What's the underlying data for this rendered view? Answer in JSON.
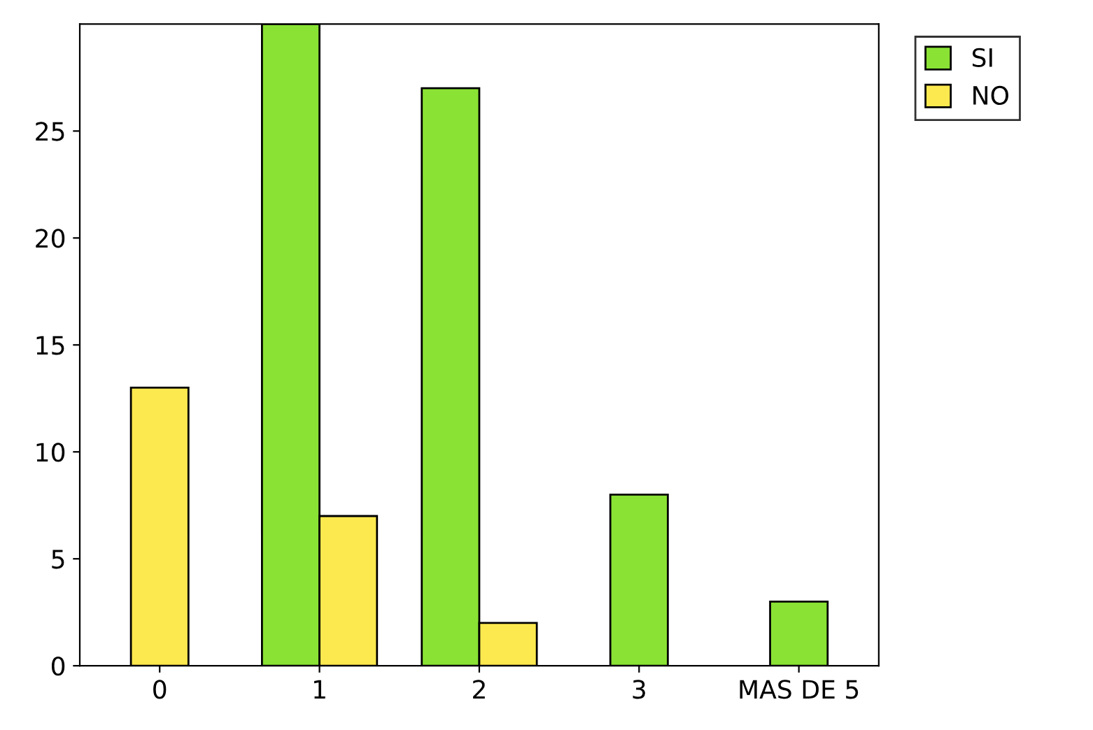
{
  "chart_data": {
    "type": "bar",
    "categories": [
      "0",
      "1",
      "2",
      "3",
      "MAS DE 5"
    ],
    "series": [
      {
        "name": "SI",
        "color": "#8ae234",
        "values": [
          null,
          30,
          27,
          8,
          3
        ]
      },
      {
        "name": "NO",
        "color": "#fce94f",
        "values": [
          13,
          7,
          2,
          null,
          null
        ]
      }
    ],
    "ylim": [
      0,
      30
    ],
    "yticks": [
      0,
      5,
      10,
      15,
      20,
      25
    ],
    "grid": false,
    "legend": "top right"
  }
}
